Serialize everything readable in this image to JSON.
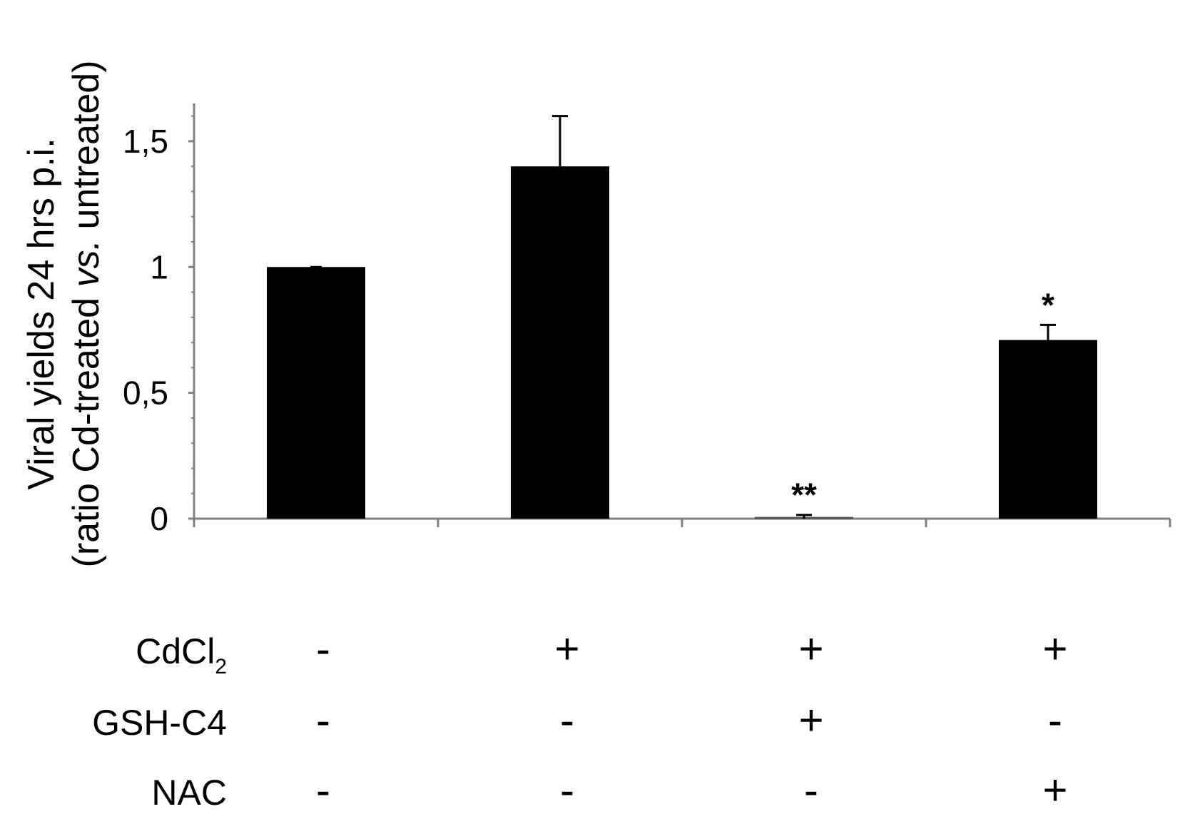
{
  "chart_data": {
    "type": "bar",
    "ylabel": "Viral yields 24 hrs p.i.",
    "ylabel_line2_pre": "(ratio Cd-treated ",
    "ylabel_line2_italic": "vs.",
    "ylabel_line2_post": " untreated)",
    "ylim": [
      0,
      1.65
    ],
    "yticks": [
      {
        "value": 0,
        "label": "0"
      },
      {
        "value": 0.5,
        "label": "0,5"
      },
      {
        "value": 1,
        "label": "1"
      },
      {
        "value": 1.5,
        "label": "1,5"
      }
    ],
    "grid": false,
    "bar_color": "#000000",
    "axis_color": "#808080",
    "bars": [
      {
        "value": 1.0,
        "error": 0,
        "significance": ""
      },
      {
        "value": 1.4,
        "error": 0.2,
        "significance": ""
      },
      {
        "value": 0.0,
        "error": 0.015,
        "significance": "**"
      },
      {
        "value": 0.71,
        "error": 0.06,
        "significance": "*"
      }
    ],
    "conditions": [
      {
        "label": "CdCl",
        "subscript": "2",
        "values": [
          "-",
          "+",
          "+",
          "+"
        ]
      },
      {
        "label": "GSH-C4",
        "subscript": "",
        "values": [
          "-",
          "-",
          "+",
          "-"
        ]
      },
      {
        "label": "NAC",
        "subscript": "",
        "values": [
          "-",
          "-",
          "-",
          "+"
        ]
      }
    ]
  }
}
